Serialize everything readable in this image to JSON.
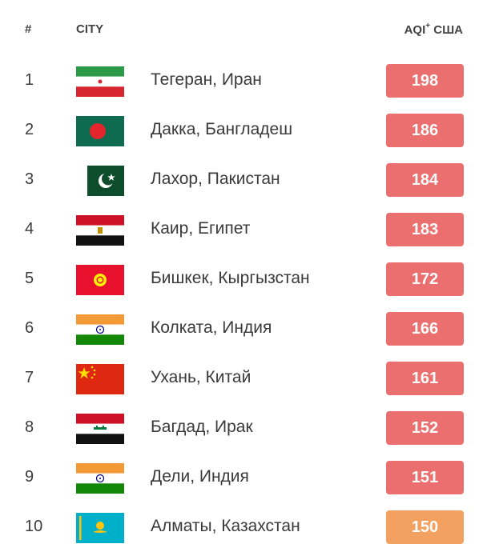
{
  "header": {
    "rank": "#",
    "city": "CITY",
    "aqi_prefix": "AQI",
    "aqi_sup": "+",
    "aqi_suffix": " США"
  },
  "colors": {
    "unhealthy": "#ec6f6f",
    "unhealthy_sensitive": "#f2a161"
  },
  "rows": [
    {
      "rank": "1",
      "city": "Тегеран, Иран",
      "aqi": "198",
      "flag": "iran-flag-icon",
      "color": "#ec6f6f"
    },
    {
      "rank": "2",
      "city": "Дакка, Бангладеш",
      "aqi": "186",
      "flag": "bangladesh-flag-icon",
      "color": "#ec6f6f"
    },
    {
      "rank": "3",
      "city": "Лахор, Пакистан",
      "aqi": "184",
      "flag": "pakistan-flag-icon",
      "color": "#ec6f6f"
    },
    {
      "rank": "4",
      "city": "Каир, Египет",
      "aqi": "183",
      "flag": "egypt-flag-icon",
      "color": "#ec6f6f"
    },
    {
      "rank": "5",
      "city": "Бишкек, Кыргызстан",
      "aqi": "172",
      "flag": "kyrgyzstan-flag-icon",
      "color": "#ec6f6f"
    },
    {
      "rank": "6",
      "city": "Колката, Индия",
      "aqi": "166",
      "flag": "india-flag-icon",
      "color": "#ec6f6f"
    },
    {
      "rank": "7",
      "city": "Ухань, Китай",
      "aqi": "161",
      "flag": "china-flag-icon",
      "color": "#ec6f6f"
    },
    {
      "rank": "8",
      "city": "Багдад, Ирак",
      "aqi": "152",
      "flag": "iraq-flag-icon",
      "color": "#ec6f6f"
    },
    {
      "rank": "9",
      "city": "Дели, Индия",
      "aqi": "151",
      "flag": "india-flag-icon",
      "color": "#ec6f6f"
    },
    {
      "rank": "10",
      "city": "Алматы, Казахстан",
      "aqi": "150",
      "flag": "kazakhstan-flag-icon",
      "color": "#f2a161"
    }
  ]
}
